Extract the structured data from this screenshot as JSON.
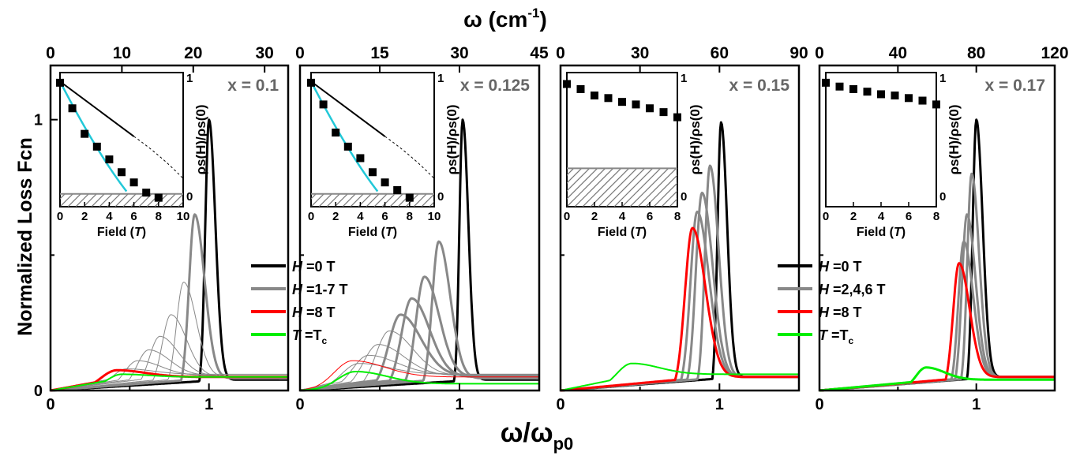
{
  "labels": {
    "top_axis": "ω (cm",
    "top_axis_sup": "-1",
    "top_axis_close": ")",
    "bottom_axis": "ω/ω",
    "bottom_axis_sub": "p0",
    "ylabel": "Normalized Loss Fcn",
    "inset_xlabel_a": "Field (",
    "inset_xlabel_t": "T",
    "inset_xlabel_b": ")",
    "inset_ylabel": "ρs(H)/ρs(0)"
  },
  "legends": [
    {
      "entries": [
        {
          "pre": "H",
          "post": " =0 T",
          "color": "#000000"
        },
        {
          "pre": "H",
          "post": " =1-7 T",
          "color": "#888888"
        },
        {
          "pre": "H",
          "post": " =8 T",
          "color": "#ff0000"
        },
        {
          "pre": "T",
          "post": " =T",
          "sub": "c",
          "color": "#00ee00"
        }
      ]
    },
    {
      "entries": [
        {
          "pre": "H",
          "post": " =0 T",
          "color": "#000000"
        },
        {
          "pre": "H",
          "post": " =2,4,6 T",
          "color": "#888888"
        },
        {
          "pre": "H",
          "post": " =8 T",
          "color": "#ff0000"
        },
        {
          "pre": "T",
          "post": " =T",
          "sub": "c",
          "color": "#00ee00"
        }
      ]
    }
  ],
  "chart_data": [
    {
      "type": "line",
      "doping": "x = 0.1",
      "xlim": [
        0,
        1.5
      ],
      "ylim": [
        0,
        1.2
      ],
      "x_ticks": [
        "0",
        "1"
      ],
      "y_ticks": [
        "0",
        "1"
      ],
      "top_axis": {
        "range": [
          0,
          33.3
        ],
        "ticks": [
          0,
          10,
          20,
          30
        ],
        "labels": [
          "0",
          "10",
          "20",
          "30"
        ]
      },
      "series": [
        {
          "color": "#000000",
          "width": 3,
          "peak_x": 1.0,
          "height": 1.0,
          "tail": 0.04
        },
        {
          "color": "#888888",
          "width": 3,
          "peak_x": 0.91,
          "height": 0.65,
          "tail": 0.045
        },
        {
          "color": "#888888",
          "width": 1,
          "peak_x": 0.84,
          "height": 0.4,
          "tail": 0.05
        },
        {
          "color": "#888888",
          "width": 1,
          "peak_x": 0.76,
          "height": 0.28,
          "tail": 0.05
        },
        {
          "color": "#888888",
          "width": 1,
          "peak_x": 0.69,
          "height": 0.2,
          "tail": 0.055
        },
        {
          "color": "#888888",
          "width": 1,
          "peak_x": 0.62,
          "height": 0.15,
          "tail": 0.055
        },
        {
          "color": "#888888",
          "width": 1,
          "peak_x": 0.55,
          "height": 0.11,
          "tail": 0.055
        },
        {
          "color": "#888888",
          "width": 1,
          "peak_x": 0.48,
          "height": 0.08,
          "tail": 0.06
        },
        {
          "color": "#ff0000",
          "width": 3,
          "peak_x": 0.42,
          "height": 0.075,
          "tail": 0.05
        },
        {
          "color": "#00ee00",
          "width": 2,
          "peak_x": 0.45,
          "height": 0.06,
          "tail": 0.05
        }
      ],
      "inset": {
        "xlim": [
          0,
          10
        ],
        "ylim": [
          0,
          1
        ],
        "x_ticks": [
          0,
          2,
          4,
          6,
          8,
          10
        ],
        "y_ticks": [
          "0",
          "1"
        ],
        "points": [
          [
            0,
            0.97
          ],
          [
            1,
            0.77
          ],
          [
            2,
            0.57
          ],
          [
            3,
            0.47
          ],
          [
            4,
            0.37
          ],
          [
            5,
            0.27
          ],
          [
            6,
            0.19
          ],
          [
            7,
            0.11
          ],
          [
            8,
            0.07
          ]
        ],
        "shade_max": 0.1
      }
    },
    {
      "type": "line",
      "doping": "x = 0.125",
      "xlim": [
        0,
        1.5
      ],
      "ylim": [
        0,
        1.2
      ],
      "x_ticks": [
        "0",
        "1"
      ],
      "y_ticks": [],
      "top_axis": {
        "range": [
          0,
          45
        ],
        "ticks": [
          0,
          15,
          30,
          45
        ],
        "labels": [
          "0",
          "15",
          "30",
          "45"
        ]
      },
      "series": [
        {
          "color": "#000000",
          "width": 3,
          "peak_x": 1.02,
          "height": 1.0,
          "tail": 0.04
        },
        {
          "color": "#888888",
          "width": 3,
          "peak_x": 0.87,
          "height": 0.55,
          "tail": 0.045
        },
        {
          "color": "#888888",
          "width": 3,
          "peak_x": 0.78,
          "height": 0.42,
          "tail": 0.05
        },
        {
          "color": "#888888",
          "width": 3,
          "peak_x": 0.7,
          "height": 0.34,
          "tail": 0.05
        },
        {
          "color": "#888888",
          "width": 3,
          "peak_x": 0.63,
          "height": 0.28,
          "tail": 0.055
        },
        {
          "color": "#888888",
          "width": 1,
          "peak_x": 0.56,
          "height": 0.22,
          "tail": 0.055
        },
        {
          "color": "#888888",
          "width": 1,
          "peak_x": 0.49,
          "height": 0.17,
          "tail": 0.055
        },
        {
          "color": "#888888",
          "width": 1,
          "peak_x": 0.43,
          "height": 0.13,
          "tail": 0.06
        },
        {
          "color": "#888888",
          "width": 1,
          "peak_x": 0.37,
          "height": 0.1,
          "tail": 0.06
        },
        {
          "color": "#ff0000",
          "width": 1,
          "peak_x": 0.33,
          "height": 0.11,
          "tail": 0.05
        },
        {
          "color": "#00ee00",
          "width": 2,
          "peak_x": 0.35,
          "height": 0.07,
          "tail": 0.025
        }
      ],
      "inset": {
        "xlim": [
          0,
          10
        ],
        "ylim": [
          0,
          1
        ],
        "x_ticks": [
          0,
          2,
          4,
          6,
          8,
          10
        ],
        "y_ticks": [
          "0",
          "1"
        ],
        "points": [
          [
            0,
            0.97
          ],
          [
            1,
            0.8
          ],
          [
            2,
            0.58
          ],
          [
            3,
            0.47
          ],
          [
            4,
            0.38
          ],
          [
            5,
            0.27
          ],
          [
            6,
            0.19
          ],
          [
            7,
            0.13
          ],
          [
            8,
            0.07
          ]
        ],
        "shade_max": 0.1
      }
    },
    {
      "type": "line",
      "doping": "x = 0.15",
      "xlim": [
        0,
        1.5
      ],
      "ylim": [
        0,
        1.2
      ],
      "x_ticks": [
        "0",
        "1"
      ],
      "y_ticks": [],
      "top_axis": {
        "range": [
          0,
          90
        ],
        "ticks": [
          0,
          30,
          60,
          90
        ],
        "labels": [
          "0",
          "30",
          "60",
          "90"
        ]
      },
      "series": [
        {
          "color": "#000000",
          "width": 3,
          "peak_x": 1.01,
          "height": 0.99,
          "tail": 0.05
        },
        {
          "color": "#888888",
          "width": 3,
          "peak_x": 0.94,
          "height": 0.83,
          "tail": 0.05
        },
        {
          "color": "#888888",
          "width": 3,
          "peak_x": 0.89,
          "height": 0.73,
          "tail": 0.05
        },
        {
          "color": "#888888",
          "width": 3,
          "peak_x": 0.86,
          "height": 0.66,
          "tail": 0.05
        },
        {
          "color": "#ff0000",
          "width": 3,
          "peak_x": 0.83,
          "height": 0.6,
          "tail": 0.05
        },
        {
          "color": "#00ee00",
          "width": 2,
          "peak_x": 0.45,
          "height": 0.1,
          "tail": 0.06
        }
      ],
      "inset": {
        "xlim": [
          0,
          8
        ],
        "ylim": [
          0,
          1
        ],
        "x_ticks": [
          0,
          2,
          4,
          6,
          8
        ],
        "y_ticks": [
          "0",
          "1"
        ],
        "points": [
          [
            0,
            0.96
          ],
          [
            1,
            0.92
          ],
          [
            2,
            0.87
          ],
          [
            3,
            0.85
          ],
          [
            4,
            0.82
          ],
          [
            5,
            0.8
          ],
          [
            6,
            0.77
          ],
          [
            7,
            0.74
          ],
          [
            8,
            0.7
          ]
        ],
        "shade_max": 0.3
      }
    },
    {
      "type": "line",
      "doping": "x = 0.17",
      "xlim": [
        0,
        1.5
      ],
      "ylim": [
        0,
        1.2
      ],
      "x_ticks": [
        "0",
        "1"
      ],
      "y_ticks": [],
      "top_axis": {
        "range": [
          0,
          120
        ],
        "ticks": [
          0,
          40,
          80,
          120
        ],
        "labels": [
          "0",
          "40",
          "80",
          "120"
        ]
      },
      "series": [
        {
          "color": "#000000",
          "width": 3,
          "peak_x": 1.0,
          "height": 1.0,
          "tail": 0.05
        },
        {
          "color": "#888888",
          "width": 3,
          "peak_x": 0.97,
          "height": 0.8,
          "tail": 0.05
        },
        {
          "color": "#888888",
          "width": 3,
          "peak_x": 0.94,
          "height": 0.65,
          "tail": 0.05
        },
        {
          "color": "#888888",
          "width": 3,
          "peak_x": 0.92,
          "height": 0.55,
          "tail": 0.05
        },
        {
          "color": "#ff0000",
          "width": 3,
          "peak_x": 0.89,
          "height": 0.47,
          "tail": 0.05
        },
        {
          "color": "#00ee00",
          "width": 3,
          "peak_x": 0.68,
          "height": 0.085,
          "tail": 0.04
        }
      ],
      "inset": {
        "xlim": [
          0,
          8
        ],
        "ylim": [
          0,
          1
        ],
        "x_ticks": [
          0,
          2,
          4,
          6,
          8
        ],
        "y_ticks": [
          "0",
          "1"
        ],
        "points": [
          [
            0,
            0.97
          ],
          [
            1,
            0.94
          ],
          [
            2,
            0.92
          ],
          [
            3,
            0.9
          ],
          [
            4,
            0.88
          ],
          [
            5,
            0.87
          ],
          [
            6,
            0.85
          ],
          [
            7,
            0.83
          ],
          [
            8,
            0.8
          ]
        ],
        "shade_max": 0
      }
    }
  ]
}
